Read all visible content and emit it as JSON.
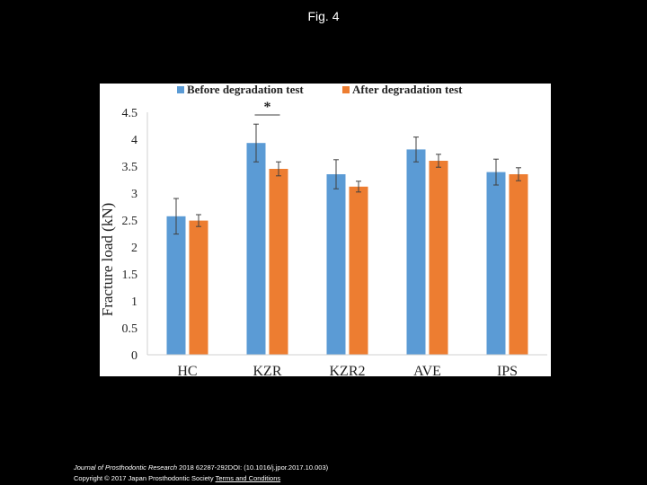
{
  "figure": {
    "title": "Fig. 4"
  },
  "chart_data": {
    "type": "bar",
    "title": "",
    "xlabel": "",
    "ylabel": "Fracture load (kN)",
    "ylim": [
      0,
      4.5
    ],
    "yticks": [
      "0",
      "0.5",
      "1",
      "1.5",
      "2",
      "2.5",
      "3",
      "3.5",
      "4",
      "4.5"
    ],
    "categories": [
      "HC",
      "KZR",
      "KZR2",
      "AVE",
      "IPS"
    ],
    "series": [
      {
        "name": "Before degradation test",
        "color": "#5B9BD5",
        "values": [
          2.57,
          3.93,
          3.35,
          3.81,
          3.39
        ],
        "errors": [
          0.33,
          0.35,
          0.27,
          0.23,
          0.24
        ]
      },
      {
        "name": "After degradation test",
        "color": "#ED7D31",
        "values": [
          2.49,
          3.45,
          3.12,
          3.6,
          3.35
        ],
        "errors": [
          0.11,
          0.13,
          0.1,
          0.12,
          0.12
        ]
      }
    ],
    "legend": "top",
    "grid": false,
    "annotations": [
      {
        "text": "*",
        "category": "KZR"
      }
    ]
  },
  "footer": {
    "journal": "Journal of Prosthodontic Research",
    "citation": " 2018 62287-292DOI: (10.1016/j.jpor.2017.10.003)",
    "copyright": "Copyright © 2017 Japan Prosthodontic Society ",
    "terms": "Terms and Conditions"
  }
}
